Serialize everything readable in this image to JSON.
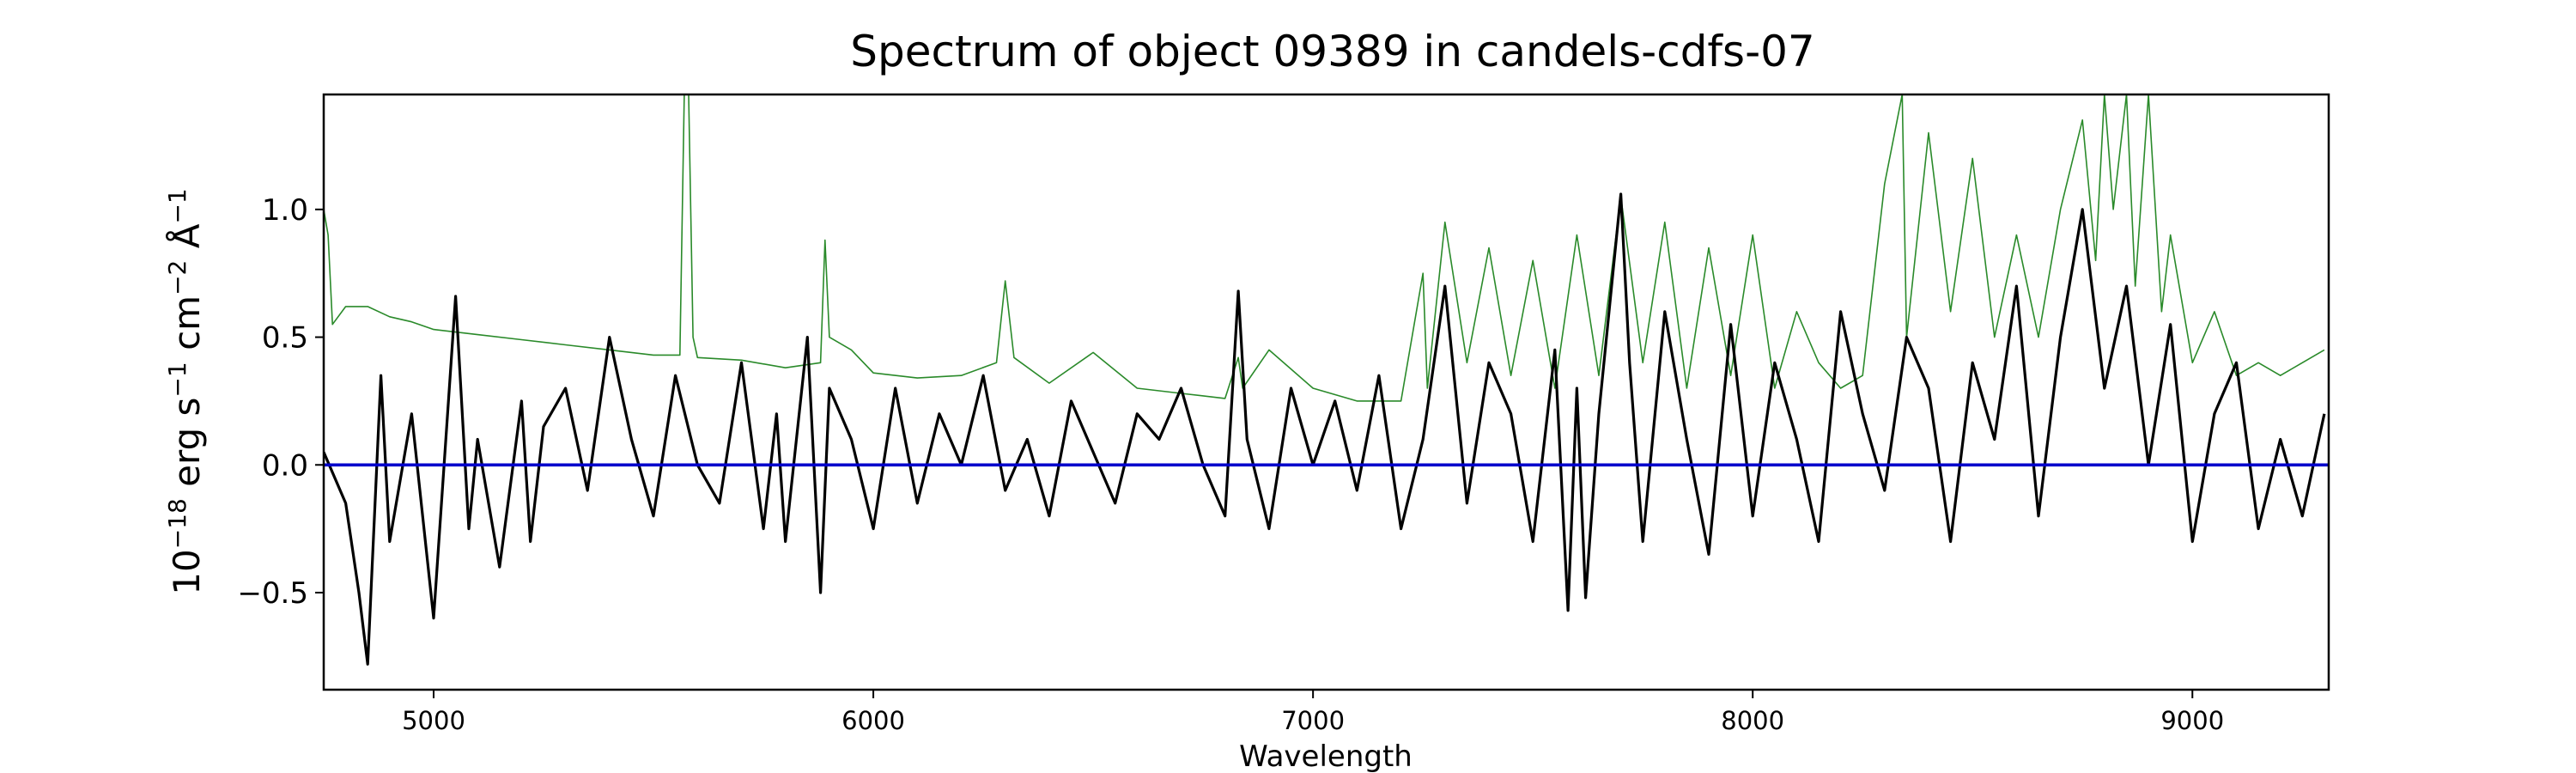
{
  "chart_data": {
    "type": "line",
    "title": "Spectrum of object 09389 in candels-cdfs-07",
    "xlabel": "Wavelength",
    "ylabel": {
      "base": "10",
      "exp1": "−18",
      "unit_erg": " erg s",
      "exp2": "−1",
      "unit_cm": " cm",
      "exp3": "−2",
      "unit_ang": " Å",
      "exp4": "−1"
    },
    "xlim": [
      4750,
      9310
    ],
    "ylim": [
      -0.88,
      1.45
    ],
    "xticks": [
      5000,
      6000,
      7000,
      8000,
      9000
    ],
    "xtick_labels": [
      "5000",
      "6000",
      "7000",
      "8000",
      "9000"
    ],
    "yticks": [
      -0.5,
      0.0,
      0.5,
      1.0
    ],
    "ytick_labels": [
      "−0.5",
      "0.0",
      "0.5",
      "1.0"
    ],
    "grid": false,
    "colors": {
      "flux": "#000000",
      "error": "#2a8a2a",
      "zero": "#0000cc"
    },
    "series": [
      {
        "role": "flux",
        "x": [
          4750,
          4800,
          4830,
          4850,
          4880,
          4900,
          4950,
          5000,
          5050,
          5080,
          5100,
          5150,
          5200,
          5220,
          5250,
          5300,
          5350,
          5400,
          5450,
          5500,
          5550,
          5600,
          5650,
          5700,
          5750,
          5780,
          5800,
          5850,
          5880,
          5900,
          5950,
          6000,
          6050,
          6100,
          6150,
          6200,
          6250,
          6300,
          6350,
          6400,
          6450,
          6500,
          6550,
          6600,
          6650,
          6700,
          6750,
          6800,
          6830,
          6850,
          6900,
          6950,
          7000,
          7050,
          7100,
          7150,
          7200,
          7250,
          7300,
          7350,
          7400,
          7450,
          7500,
          7550,
          7580,
          7600,
          7620,
          7650,
          7700,
          7720,
          7750,
          7800,
          7850,
          7900,
          7950,
          8000,
          8050,
          8100,
          8150,
          8200,
          8250,
          8300,
          8350,
          8400,
          8450,
          8500,
          8550,
          8600,
          8650,
          8700,
          8750,
          8800,
          8850,
          8900,
          8950,
          9000,
          9050,
          9100,
          9150,
          9200,
          9250,
          9300
        ],
        "values": [
          0.05,
          -0.15,
          -0.5,
          -0.78,
          0.35,
          -0.3,
          0.2,
          -0.6,
          0.66,
          -0.25,
          0.1,
          -0.4,
          0.25,
          -0.3,
          0.15,
          0.3,
          -0.1,
          0.5,
          0.1,
          -0.2,
          0.35,
          0.0,
          -0.15,
          0.4,
          -0.25,
          0.2,
          -0.3,
          0.5,
          -0.5,
          0.3,
          0.1,
          -0.25,
          0.3,
          -0.15,
          0.2,
          0.0,
          0.35,
          -0.1,
          0.1,
          -0.2,
          0.25,
          0.05,
          -0.15,
          0.2,
          0.1,
          0.3,
          0.0,
          -0.2,
          0.68,
          0.1,
          -0.25,
          0.3,
          0.0,
          0.25,
          -0.1,
          0.35,
          -0.25,
          0.1,
          0.7,
          -0.15,
          0.4,
          0.2,
          -0.3,
          0.45,
          -0.57,
          0.3,
          -0.52,
          0.2,
          1.06,
          0.4,
          -0.3,
          0.6,
          0.1,
          -0.35,
          0.55,
          -0.2,
          0.4,
          0.1,
          -0.3,
          0.6,
          0.2,
          -0.1,
          0.5,
          0.3,
          -0.3,
          0.4,
          0.1,
          0.7,
          -0.2,
          0.5,
          1.0,
          0.3,
          0.7,
          0.0,
          0.55,
          -0.3,
          0.2,
          0.4,
          -0.25,
          0.1,
          -0.2,
          0.2
        ]
      },
      {
        "role": "error",
        "x": [
          4750,
          4760,
          4770,
          4800,
          4850,
          4900,
          4950,
          5000,
          5100,
          5200,
          5300,
          5400,
          5500,
          5560,
          5570,
          5580,
          5590,
          5600,
          5700,
          5800,
          5880,
          5890,
          5900,
          5950,
          6000,
          6100,
          6200,
          6280,
          6300,
          6320,
          6400,
          6500,
          6600,
          6700,
          6800,
          6830,
          6840,
          6900,
          7000,
          7100,
          7200,
          7250,
          7260,
          7300,
          7350,
          7400,
          7450,
          7500,
          7550,
          7600,
          7650,
          7700,
          7750,
          7800,
          7850,
          7900,
          7950,
          8000,
          8050,
          8100,
          8150,
          8200,
          8250,
          8300,
          8340,
          8350,
          8400,
          8450,
          8500,
          8550,
          8600,
          8650,
          8700,
          8750,
          8780,
          8800,
          8820,
          8850,
          8870,
          8900,
          8930,
          8950,
          9000,
          9050,
          9100,
          9150,
          9200,
          9250,
          9300
        ],
        "values": [
          1.0,
          0.9,
          0.55,
          0.62,
          0.62,
          0.58,
          0.56,
          0.53,
          0.51,
          0.49,
          0.47,
          0.45,
          0.43,
          0.43,
          1.45,
          1.45,
          0.5,
          0.42,
          0.41,
          0.38,
          0.4,
          0.88,
          0.5,
          0.45,
          0.36,
          0.34,
          0.35,
          0.4,
          0.72,
          0.42,
          0.32,
          0.44,
          0.3,
          0.28,
          0.26,
          0.42,
          0.3,
          0.45,
          0.3,
          0.25,
          0.25,
          0.75,
          0.3,
          0.95,
          0.4,
          0.85,
          0.35,
          0.8,
          0.3,
          0.9,
          0.35,
          1.05,
          0.4,
          0.95,
          0.3,
          0.85,
          0.35,
          0.9,
          0.3,
          0.6,
          0.4,
          0.3,
          0.35,
          1.1,
          1.45,
          0.5,
          1.3,
          0.6,
          1.2,
          0.5,
          0.9,
          0.5,
          1.0,
          1.35,
          0.8,
          1.45,
          1.0,
          1.45,
          0.7,
          1.45,
          0.6,
          0.9,
          0.4,
          0.6,
          0.35,
          0.4,
          0.35,
          0.4,
          0.45
        ]
      },
      {
        "role": "zero",
        "x": [
          4750,
          9310
        ],
        "values": [
          0.0,
          0.0
        ]
      }
    ]
  }
}
